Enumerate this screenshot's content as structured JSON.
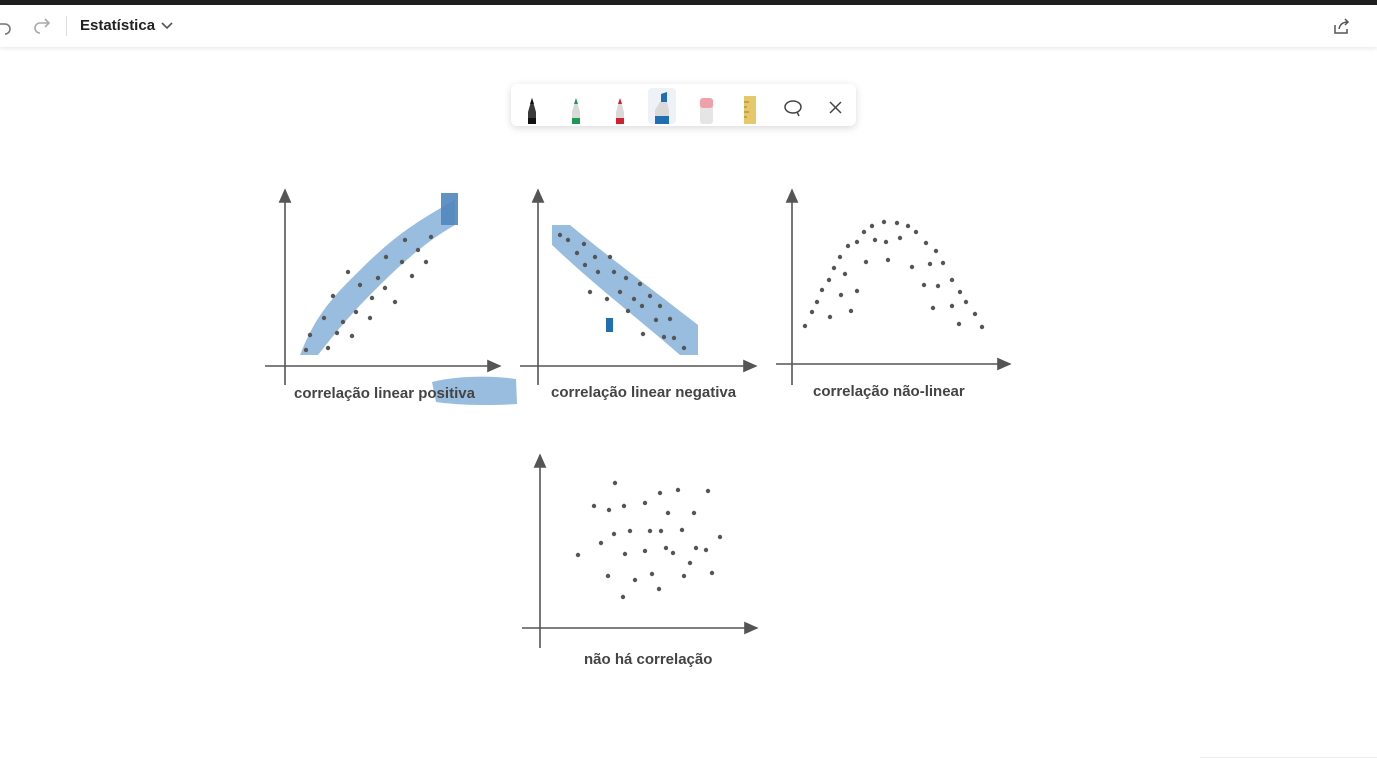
{
  "app": {
    "title": "Estatística"
  },
  "toolbar": {
    "undo_icon": "undo-icon",
    "redo_icon": "redo-icon",
    "title_chevron_icon": "chevron-down-icon",
    "share_icon": "share-icon"
  },
  "ink_tools": [
    {
      "name": "black-pen",
      "color": "#1a1a1a"
    },
    {
      "name": "green-pen",
      "color": "#1f9a55"
    },
    {
      "name": "red-pen",
      "color": "#d32030"
    },
    {
      "name": "blue-highlighter",
      "color": "#1f6fb2",
      "selected": true
    },
    {
      "name": "eraser",
      "color": "#f0a0a8"
    },
    {
      "name": "ruler",
      "color": "#e6c86b"
    },
    {
      "name": "lasso-select",
      "color": "#444444"
    },
    {
      "name": "close",
      "color": "#444444"
    }
  ],
  "figures": {
    "positive": {
      "label": "correlação linear positiva"
    },
    "negative": {
      "label": "correlação linear negativa"
    },
    "nonlinear": {
      "label": "correlação não-linear"
    },
    "none": {
      "label": "não há correlação"
    }
  }
}
